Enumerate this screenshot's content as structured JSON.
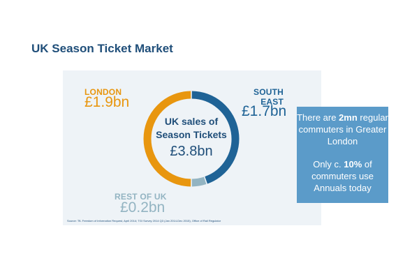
{
  "page": {
    "title": "UK Season Ticket Market"
  },
  "chart_data": {
    "type": "pie",
    "variant": "donut",
    "title": "",
    "center_label": "UK sales of Season Tickets",
    "center_value": "£3.8bn",
    "slices": [
      {
        "label": "SOUTH EAST",
        "value": 1.7,
        "display": "£1.7bn",
        "color": "#1f6396"
      },
      {
        "label": "REST OF UK",
        "value": 0.2,
        "display": "£0.2bn",
        "color": "#93b4c2"
      },
      {
        "label": "LONDON",
        "value": 1.9,
        "display": "£1.9bn",
        "color": "#e8960f"
      }
    ],
    "unit": "£bn",
    "source": "Source: TfL Freedom of Information Request, April 2014; TGI Survey 2014 Q3 (Jan 2014-Dec 2015), Office of Rail Regulator"
  },
  "callout": {
    "line1_pre": "There are ",
    "line1_bold": "2mn",
    "line1_post": " regular commuters in Greater London",
    "line2_pre": "Only c. ",
    "line2_bold": "10%",
    "line2_post": " of commuters use Annuals today"
  }
}
